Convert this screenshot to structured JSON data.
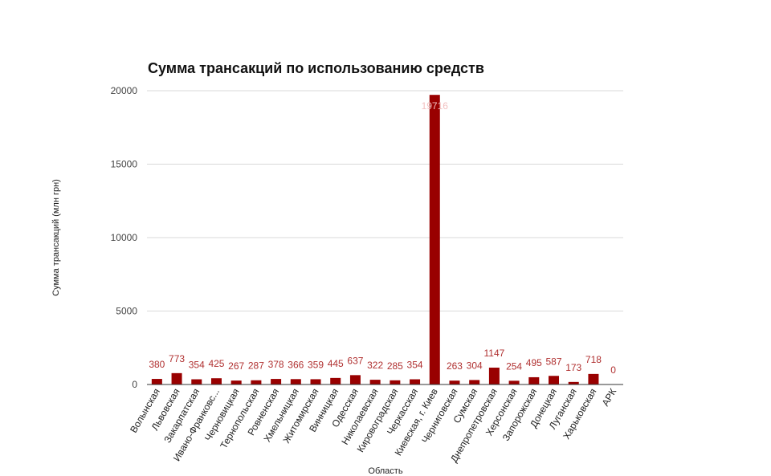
{
  "chart_data": {
    "type": "bar",
    "title": "Сумма трансакций по использованию средств",
    "xlabel": "Область",
    "ylabel": "Сумма трансакций (млн грн)",
    "ylim": [
      0,
      20000
    ],
    "yticks": [
      "0",
      "5000",
      "10000",
      "15000",
      "20000"
    ],
    "ytick_values": [
      0,
      5000,
      10000,
      15000,
      20000
    ],
    "grid": true,
    "legend": "none",
    "categories": [
      "Волынская",
      "Львовская",
      "Закарпатская",
      "Ивано-Франковс...",
      "Черновицкая",
      "Тернопольская",
      "Ровненская",
      "Хмельницкая",
      "Житомирская",
      "Винницкая",
      "Одесская",
      "Николаевская",
      "Кировоградская",
      "Черкасская",
      "Киевская, г. Киев",
      "Черниговская",
      "Сумская",
      "Днепропетровская",
      "Херсонская",
      "Запорожская",
      "Донецкая",
      "Луганская",
      "Харьковская",
      "АРК"
    ],
    "values": [
      380,
      773,
      354,
      425,
      267,
      287,
      378,
      366,
      359,
      445,
      637,
      322,
      285,
      354,
      19716,
      263,
      304,
      1147,
      254,
      495,
      587,
      173,
      718,
      0
    ],
    "data_labels": [
      "380",
      "773",
      "354",
      "425",
      "267",
      "287",
      "378",
      "366",
      "359",
      "445",
      "637",
      "322",
      "285",
      "354",
      "19716",
      "263",
      "304",
      "1147",
      "254",
      "495",
      "587",
      "173",
      "718",
      "0"
    ],
    "colors": {
      "bar": "#990000",
      "label": "#b03030",
      "label_on_bar": "#f2c0c0"
    }
  }
}
